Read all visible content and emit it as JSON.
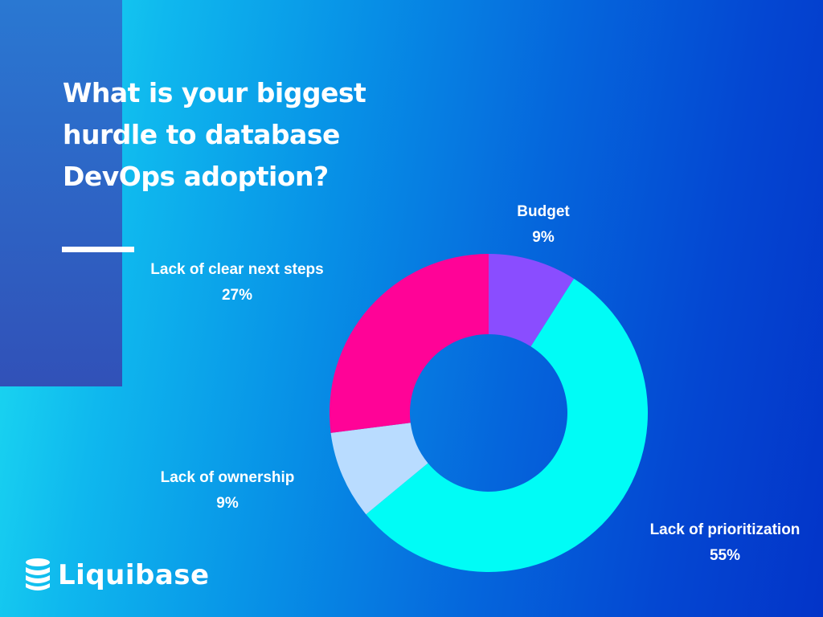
{
  "title": "What is your biggest hurdle to database DevOps adoption?",
  "brand": {
    "name": "Liquibase",
    "icon": "liquibase-logo-icon"
  },
  "colors": {
    "budget": "#8a4dff",
    "lack_of_prioritization": "#00fcf6",
    "lack_of_ownership": "#b9dcff",
    "lack_of_clear_next_steps": "#ff0397",
    "text": "#ffffff"
  },
  "chart_data": {
    "type": "pie",
    "donut": true,
    "slices": [
      {
        "label": "Budget",
        "value": 9,
        "display": "9%",
        "color": "#8a4dff"
      },
      {
        "label": "Lack of prioritization",
        "value": 55,
        "display": "55%",
        "color": "#00fcf6"
      },
      {
        "label": "Lack of ownership",
        "value": 9,
        "display": "9%",
        "color": "#b9dcff"
      },
      {
        "label": "Lack of clear next steps",
        "value": 27,
        "display": "27%",
        "color": "#ff0397"
      }
    ]
  }
}
